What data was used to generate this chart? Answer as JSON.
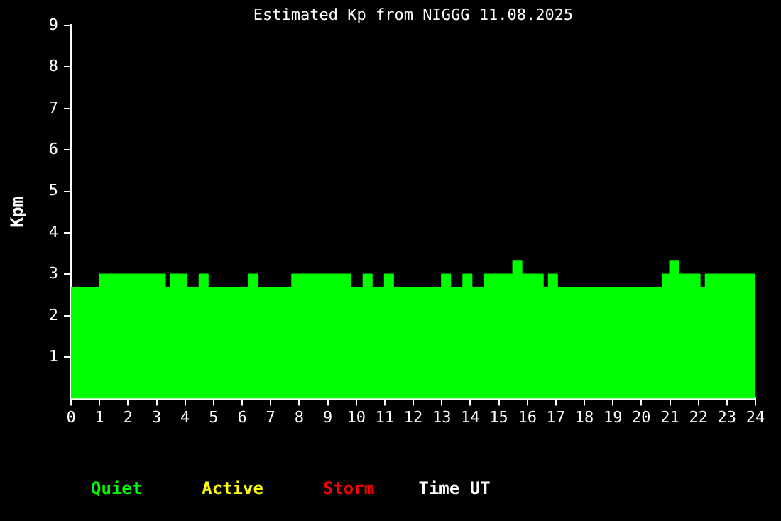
{
  "chart_data": {
    "type": "area",
    "title": "Estimated Kp from NIGGG 11.08.2025",
    "xlabel": "Time UT",
    "ylabel": "Kpm",
    "x": [
      0,
      1,
      1,
      3.3,
      3.3,
      3.5,
      3.5,
      4.05,
      4.05,
      4.5,
      4.5,
      4.8,
      4.8,
      6.25,
      6.25,
      6.55,
      6.55,
      7.75,
      7.75,
      9.8,
      9.8,
      10.25,
      10.25,
      10.55,
      10.55,
      11,
      11,
      11.3,
      11.3,
      13,
      13,
      13.3,
      13.3,
      13.75,
      13.75,
      14.05,
      14.05,
      14.5,
      14.5,
      15.5,
      15.5,
      15.8,
      15.8,
      16.55,
      16.55,
      16.75,
      16.75,
      17.05,
      17.05,
      20.75,
      20.75,
      21,
      21,
      21.3,
      21.3,
      22.05,
      22.05,
      22.25,
      22.25,
      24
    ],
    "series": [
      {
        "name": "Quiet",
        "color": "#00ff00",
        "values": [
          2.67,
          2.67,
          3,
          3,
          2.67,
          2.67,
          3,
          3,
          2.67,
          2.67,
          3,
          3,
          2.67,
          2.67,
          3,
          3,
          2.67,
          2.67,
          3,
          3,
          2.67,
          2.67,
          3,
          3,
          2.67,
          2.67,
          3,
          3,
          2.67,
          2.67,
          3,
          3,
          2.67,
          2.67,
          3,
          3,
          2.67,
          2.67,
          3,
          3,
          3.33,
          3.33,
          3,
          3,
          2.67,
          2.67,
          3,
          3,
          2.67,
          2.67,
          3,
          3,
          3.33,
          3.33,
          3,
          3,
          2.67,
          2.67,
          3,
          3
        ]
      },
      {
        "name": "Active",
        "color": "#ffff00",
        "values": [
          null,
          null,
          null,
          null,
          null,
          null,
          null,
          null,
          null,
          null,
          null,
          null,
          null,
          null,
          null,
          null,
          null,
          null,
          null,
          null,
          null,
          null,
          null,
          null,
          null,
          null,
          null,
          null,
          null,
          null,
          null,
          null,
          null,
          null,
          null,
          null,
          null,
          null,
          null,
          null,
          null,
          null,
          null,
          null,
          null,
          null,
          null,
          null,
          null,
          null,
          null,
          null,
          null,
          null,
          null,
          null,
          null,
          null,
          null,
          null
        ]
      },
      {
        "name": "Storm",
        "color": "#ff0000",
        "values": [
          null,
          null,
          null,
          null,
          null,
          null,
          null,
          null,
          null,
          null,
          null,
          null,
          null,
          null,
          null,
          null,
          null,
          null,
          null,
          null,
          null,
          null,
          null,
          null,
          null,
          null,
          null,
          null,
          null,
          null,
          null,
          null,
          null,
          null,
          null,
          null,
          null,
          null,
          null,
          null,
          null,
          null,
          null,
          null,
          null,
          null,
          null,
          null,
          null,
          null,
          null,
          null,
          null,
          null,
          null,
          null,
          null,
          null,
          null,
          null
        ]
      }
    ],
    "xlim": [
      0,
      24
    ],
    "xticks": [
      0,
      1,
      2,
      3,
      4,
      5,
      6,
      7,
      8,
      9,
      10,
      11,
      12,
      13,
      14,
      15,
      16,
      17,
      18,
      19,
      20,
      21,
      22,
      23,
      24
    ],
    "ylim": [
      0,
      9
    ],
    "yticks": [
      1,
      2,
      3,
      4,
      5,
      6,
      7,
      8,
      9
    ],
    "grid": false,
    "legend": "bottom left"
  }
}
